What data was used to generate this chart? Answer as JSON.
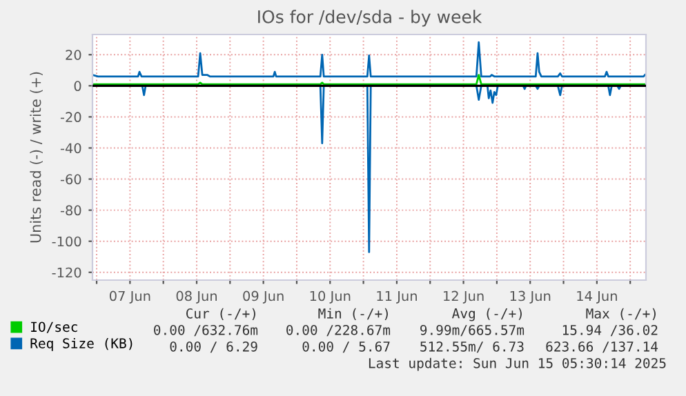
{
  "chart_data": {
    "type": "line",
    "title": "IOs for /dev/sda - by week",
    "ylabel": "Units read (-) / write (+)",
    "xlim": [
      "2025-06-06T22:30",
      "2025-06-15T05:40"
    ],
    "ylim": [
      -125,
      33
    ],
    "yticks": [
      -120,
      -100,
      -80,
      -60,
      -40,
      -20,
      0,
      20
    ],
    "xticks": [
      {
        "value": "2025-06-07T00:00",
        "label": null
      },
      {
        "value": "2025-06-07T12:00",
        "label": "07 Jun"
      },
      {
        "value": "2025-06-08T00:00",
        "label": null
      },
      {
        "value": "2025-06-08T12:00",
        "label": "08 Jun"
      },
      {
        "value": "2025-06-09T00:00",
        "label": null
      },
      {
        "value": "2025-06-09T12:00",
        "label": "09 Jun"
      },
      {
        "value": "2025-06-10T00:00",
        "label": null
      },
      {
        "value": "2025-06-10T12:00",
        "label": "10 Jun"
      },
      {
        "value": "2025-06-11T00:00",
        "label": null
      },
      {
        "value": "2025-06-11T12:00",
        "label": "11 Jun"
      },
      {
        "value": "2025-06-12T00:00",
        "label": null
      },
      {
        "value": "2025-06-12T12:00",
        "label": "12 Jun"
      },
      {
        "value": "2025-06-13T00:00",
        "label": null
      },
      {
        "value": "2025-06-13T12:00",
        "label": "13 Jun"
      },
      {
        "value": "2025-06-14T00:00",
        "label": null
      },
      {
        "value": "2025-06-14T12:00",
        "label": "14 Jun"
      },
      {
        "value": "2025-06-15T00:00",
        "label": null
      }
    ],
    "grid": true,
    "legend": "bottom",
    "ref_lines": [
      {
        "axis": "y",
        "value": 0,
        "color": "#000000"
      }
    ],
    "series": [
      {
        "name": "IO/sec",
        "color": "#00cc00",
        "x": [
          "2025-06-06T22:30",
          "2025-06-08T12:31",
          "2025-06-08T13:16",
          "2025-06-08T14:01",
          "2025-06-10T08:30",
          "2025-06-10T09:09",
          "2025-06-10T09:44",
          "2025-06-12T16:39",
          "2025-06-12T17:30",
          "2025-06-12T18:24",
          "2025-06-15T05:18"
        ],
        "values": [
          1,
          1,
          2,
          1,
          1,
          2,
          1,
          1,
          7,
          1,
          1
        ]
      },
      {
        "name": "Req Size (KB)",
        "color": "#0066b3",
        "x": [
          "2025-06-06T22:30",
          "2025-06-07T00:30",
          "2025-06-07T14:54",
          "2025-06-07T15:24",
          "2025-06-07T16:09",
          "2025-06-08T12:31",
          "2025-06-08T13:16",
          "2025-06-08T14:01",
          "2025-06-08T15:45",
          "2025-06-08T16:45",
          "2025-06-09T15:36",
          "2025-06-09T16:06",
          "2025-06-09T16:36",
          "2025-06-10T08:30",
          "2025-06-10T09:09",
          "2025-06-10T09:44",
          "2025-06-11T01:24",
          "2025-06-11T02:02",
          "2025-06-11T02:38",
          "2025-06-12T16:39",
          "2025-06-12T17:30",
          "2025-06-12T18:24",
          "2025-06-12T21:36",
          "2025-06-12T22:06",
          "2025-06-12T23:06",
          "2025-06-13T14:00",
          "2025-06-13T14:40",
          "2025-06-13T15:15",
          "2025-06-13T16:00",
          "2025-06-13T21:58",
          "2025-06-13T22:48",
          "2025-06-13T23:27",
          "2025-06-14T14:54",
          "2025-06-14T15:30",
          "2025-06-14T16:06",
          "2025-06-15T04:48",
          "2025-06-15T05:18"
        ],
        "values": [
          7,
          6,
          6,
          9,
          6,
          6,
          21,
          7,
          7,
          6,
          6,
          9,
          6,
          6,
          20,
          6,
          6,
          19.5,
          6,
          6,
          28,
          6,
          6,
          7,
          6,
          6,
          21,
          9,
          6,
          6,
          8,
          6,
          6,
          9,
          6,
          6,
          7
        ]
      },
      {
        "color": "#0066b3",
        "x": [
          "2025-06-06T22:30",
          "2025-06-07T16:24",
          "2025-06-07T17:03",
          "2025-06-07T17:38",
          "2025-06-10T08:30",
          "2025-06-10T09:09",
          "2025-06-10T09:44",
          "2025-06-11T01:24",
          "2025-06-11T02:02",
          "2025-06-11T02:38",
          "2025-06-12T16:39",
          "2025-06-12T17:30",
          "2025-06-12T18:24",
          "2025-06-12T20:37",
          "2025-06-12T21:06",
          "2025-06-12T21:46",
          "2025-06-12T22:28",
          "2025-06-12T23:06",
          "2025-06-12T23:45",
          "2025-06-13T00:21",
          "2025-06-13T09:30",
          "2025-06-13T10:00",
          "2025-06-13T10:30",
          "2025-06-13T14:00",
          "2025-06-13T14:40",
          "2025-06-13T15:15",
          "2025-06-13T21:58",
          "2025-06-13T22:48",
          "2025-06-13T23:27",
          "2025-06-14T16:06",
          "2025-06-14T16:42",
          "2025-06-14T17:21",
          "2025-06-14T19:20",
          "2025-06-14T20:00",
          "2025-06-14T20:35",
          "2025-06-15T05:18"
        ],
        "values": [
          0,
          0,
          -6,
          0,
          0,
          -37,
          0,
          0,
          -107,
          0,
          0,
          -9,
          0,
          0,
          -8,
          -3,
          -11,
          -4,
          -6,
          0,
          0,
          -2,
          0,
          0,
          -2,
          0,
          0,
          -6,
          0,
          0,
          -6,
          0,
          0,
          -2,
          0,
          0
        ]
      }
    ],
    "annotations": [
      "Cur (-/+)",
      "Min (-/+)",
      "Avg (-/+)",
      "Max (-/+)",
      "0.00 /632.76m",
      "0.00 /228.67m",
      "9.99m/665.57m",
      "15.94 /36.02",
      "0.00 / 6.29",
      "0.00 / 5.67",
      "512.55m/ 6.73",
      "623.66 /137.14",
      "Last update: Sun Jun 15 05:30:14 2025"
    ]
  }
}
